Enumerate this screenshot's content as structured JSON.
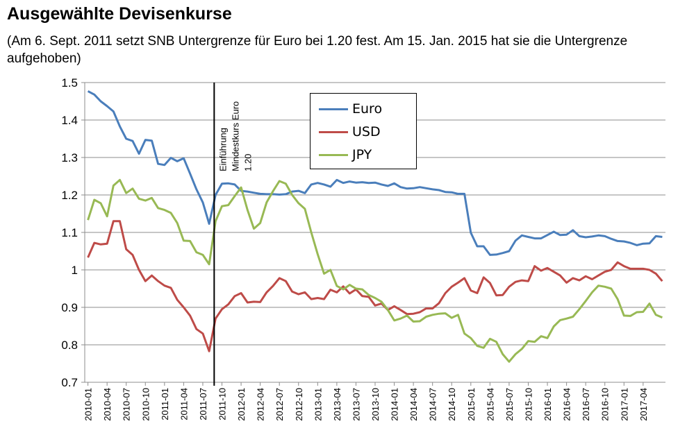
{
  "title": "Ausgewählte Devisenkurse",
  "subtitle": "(Am 6. Sept. 2011 setzt SNB Untergrenze für Euro bei 1.20 fest. Am 15. Jan. 2015 hat sie die Untergrenze aufgehoben)",
  "chart_data": {
    "type": "line",
    "title": "Ausgewählte Devisenkurse",
    "xlabel": "",
    "ylabel": "",
    "ylim": [
      0.7,
      1.5
    ],
    "yticks": [
      "0.7",
      "0.8",
      "0.9",
      "1",
      "1.1",
      "1.2",
      "1.3",
      "1.4",
      "1.5"
    ],
    "grid": true,
    "legend_position": "top-center",
    "x_start": "2010-01",
    "x_tick_labels": [
      "2010-01",
      "2010-04",
      "2010-07",
      "2010-10",
      "2011-01",
      "2011-04",
      "2011-07",
      "2011-10",
      "2012-01",
      "2012-04",
      "2012-07",
      "2012-10",
      "2013-01",
      "2013-04",
      "2013-07",
      "2013-10",
      "2014-01",
      "2014-04",
      "2014-07",
      "2014-10",
      "2015-01",
      "2015-04",
      "2015-07",
      "2015-10",
      "2016-01",
      "2016-04",
      "2016-07",
      "2016-10",
      "2017-01",
      "2017-04"
    ],
    "annotation": {
      "x": "2011-09",
      "text_lines": [
        "Einführung",
        "Mindestkurs  Euro",
        "1.20"
      ]
    },
    "series": [
      {
        "name": "Euro",
        "color": "#4a7ebb",
        "values": [
          1.477,
          1.468,
          1.45,
          1.437,
          1.423,
          1.383,
          1.35,
          1.344,
          1.31,
          1.347,
          1.345,
          1.283,
          1.28,
          1.299,
          1.29,
          1.298,
          1.257,
          1.215,
          1.18,
          1.123,
          1.2,
          1.23,
          1.231,
          1.228,
          1.211,
          1.209,
          1.206,
          1.203,
          1.202,
          1.202,
          1.201,
          1.202,
          1.209,
          1.211,
          1.205,
          1.228,
          1.232,
          1.228,
          1.222,
          1.24,
          1.232,
          1.236,
          1.233,
          1.234,
          1.232,
          1.233,
          1.228,
          1.224,
          1.231,
          1.221,
          1.217,
          1.218,
          1.221,
          1.218,
          1.215,
          1.213,
          1.208,
          1.207,
          1.203,
          1.203,
          1.099,
          1.063,
          1.063,
          1.04,
          1.041,
          1.045,
          1.05,
          1.078,
          1.092,
          1.088,
          1.084,
          1.084,
          1.093,
          1.102,
          1.093,
          1.094,
          1.106,
          1.09,
          1.087,
          1.089,
          1.092,
          1.09,
          1.083,
          1.077,
          1.076,
          1.072,
          1.066,
          1.07,
          1.071,
          1.09,
          1.088
        ]
      },
      {
        "name": "USD",
        "color": "#be4b48",
        "values": [
          1.033,
          1.072,
          1.068,
          1.07,
          1.13,
          1.13,
          1.055,
          1.04,
          1.0,
          0.97,
          0.985,
          0.97,
          0.958,
          0.952,
          0.92,
          0.9,
          0.878,
          0.842,
          0.83,
          0.783,
          0.87,
          0.895,
          0.908,
          0.93,
          0.938,
          0.913,
          0.915,
          0.914,
          0.94,
          0.957,
          0.978,
          0.97,
          0.942,
          0.935,
          0.94,
          0.922,
          0.925,
          0.922,
          0.947,
          0.94,
          0.956,
          0.937,
          0.948,
          0.93,
          0.928,
          0.905,
          0.91,
          0.893,
          0.903,
          0.893,
          0.882,
          0.883,
          0.887,
          0.897,
          0.897,
          0.911,
          0.938,
          0.955,
          0.966,
          0.978,
          0.945,
          0.938,
          0.98,
          0.965,
          0.932,
          0.933,
          0.955,
          0.968,
          0.972,
          0.97,
          1.01,
          0.998,
          1.005,
          0.995,
          0.985,
          0.966,
          0.978,
          0.972,
          0.983,
          0.975,
          0.985,
          0.995,
          1.0,
          1.02,
          1.01,
          1.003,
          1.003,
          1.003,
          1.0,
          0.99,
          0.97
        ]
      },
      {
        "name": "JPY",
        "color": "#98b954",
        "values": [
          1.133,
          1.187,
          1.178,
          1.143,
          1.225,
          1.24,
          1.205,
          1.217,
          1.19,
          1.185,
          1.192,
          1.165,
          1.16,
          1.152,
          1.125,
          1.078,
          1.077,
          1.047,
          1.04,
          1.015,
          1.13,
          1.17,
          1.173,
          1.197,
          1.22,
          1.16,
          1.11,
          1.125,
          1.18,
          1.21,
          1.237,
          1.23,
          1.2,
          1.178,
          1.163,
          1.1,
          1.042,
          0.99,
          1.0,
          0.957,
          0.948,
          0.96,
          0.95,
          0.948,
          0.933,
          0.925,
          0.915,
          0.893,
          0.865,
          0.87,
          0.878,
          0.862,
          0.863,
          0.875,
          0.88,
          0.883,
          0.884,
          0.872,
          0.88,
          0.83,
          0.818,
          0.797,
          0.792,
          0.816,
          0.808,
          0.775,
          0.755,
          0.775,
          0.789,
          0.81,
          0.808,
          0.823,
          0.818,
          0.849,
          0.866,
          0.87,
          0.875,
          0.895,
          0.917,
          0.94,
          0.958,
          0.955,
          0.95,
          0.922,
          0.878,
          0.877,
          0.887,
          0.888,
          0.91,
          0.88,
          0.873
        ]
      }
    ]
  }
}
